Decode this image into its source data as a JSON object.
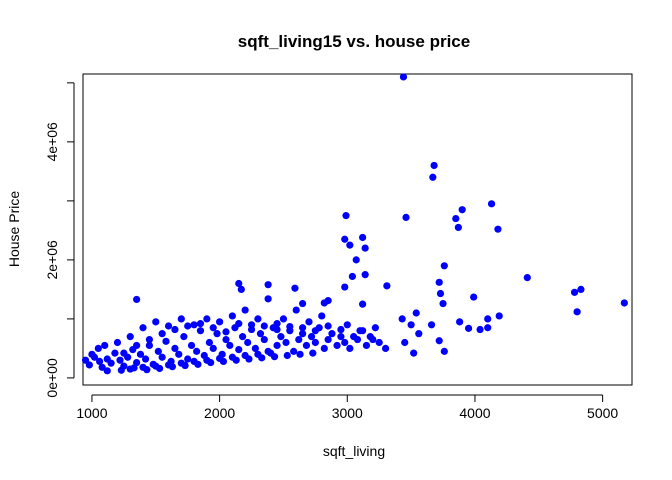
{
  "chart_data": {
    "type": "scatter",
    "title": "sqft_living15 vs. house price",
    "xlabel": "sqft_living",
    "ylabel": "House Price",
    "xlim": [
      930,
      5230
    ],
    "ylim": [
      -120000,
      5150000
    ],
    "x_ticks": [
      1000,
      2000,
      3000,
      4000,
      5000
    ],
    "x_tick_labels": [
      "1000",
      "2000",
      "3000",
      "4000",
      "5000"
    ],
    "y_ticks": [
      0,
      1000000,
      2000000,
      3000000,
      4000000,
      5000000
    ],
    "y_tick_labels": [
      "0e+00",
      "",
      "2e+06",
      "",
      "4e+06",
      ""
    ],
    "grid": false,
    "marker_color": "#0000FF",
    "points": [
      [
        3440,
        5100000
      ],
      [
        3680,
        3600000
      ],
      [
        3670,
        3400000
      ],
      [
        4130,
        2950000
      ],
      [
        3900,
        2850000
      ],
      [
        2990,
        2750000
      ],
      [
        3460,
        2720000
      ],
      [
        3850,
        2700000
      ],
      [
        3870,
        2550000
      ],
      [
        4180,
        2520000
      ],
      [
        3120,
        2380000
      ],
      [
        2980,
        2350000
      ],
      [
        3020,
        2250000
      ],
      [
        3140,
        2200000
      ],
      [
        3070,
        2000000
      ],
      [
        3760,
        1900000
      ],
      [
        3140,
        1750000
      ],
      [
        3040,
        1720000
      ],
      [
        4410,
        1700000
      ],
      [
        2150,
        1600000
      ],
      [
        2380,
        1580000
      ],
      [
        3720,
        1620000
      ],
      [
        2980,
        1540000
      ],
      [
        3310,
        1560000
      ],
      [
        4830,
        1500000
      ],
      [
        2170,
        1500000
      ],
      [
        2590,
        1520000
      ],
      [
        4780,
        1450000
      ],
      [
        3730,
        1430000
      ],
      [
        3990,
        1370000
      ],
      [
        5170,
        1270000
      ],
      [
        2380,
        1340000
      ],
      [
        1350,
        1330000
      ],
      [
        2850,
        1310000
      ],
      [
        2820,
        1270000
      ],
      [
        2650,
        1260000
      ],
      [
        3120,
        1250000
      ],
      [
        3750,
        1260000
      ],
      [
        4800,
        1120000
      ],
      [
        3540,
        1100000
      ],
      [
        3430,
        1000000
      ],
      [
        3500,
        900000
      ],
      [
        3880,
        950000
      ],
      [
        4100,
        1000000
      ],
      [
        4190,
        1050000
      ],
      [
        3660,
        900000
      ],
      [
        3950,
        840000
      ],
      [
        4040,
        820000
      ],
      [
        4100,
        850000
      ],
      [
        3560,
        750000
      ],
      [
        3720,
        630000
      ],
      [
        3760,
        450000
      ],
      [
        3520,
        420000
      ],
      [
        3450,
        600000
      ],
      [
        3300,
        500000
      ],
      [
        3200,
        650000
      ],
      [
        3100,
        800000
      ],
      [
        3000,
        900000
      ],
      [
        2800,
        1050000
      ],
      [
        2700,
        950000
      ],
      [
        2600,
        1150000
      ],
      [
        2500,
        1000000
      ],
      [
        2450,
        820000
      ],
      [
        2300,
        1000000
      ],
      [
        2200,
        1150000
      ],
      [
        2100,
        1050000
      ],
      [
        2000,
        950000
      ],
      [
        1900,
        1000000
      ],
      [
        1800,
        900000
      ],
      [
        1700,
        1000000
      ],
      [
        1600,
        880000
      ],
      [
        1500,
        950000
      ],
      [
        1400,
        850000
      ],
      [
        1300,
        700000
      ],
      [
        1200,
        600000
      ],
      [
        1100,
        550000
      ],
      [
        1050,
        500000
      ],
      [
        1000,
        400000
      ],
      [
        950,
        300000
      ],
      [
        980,
        220000
      ],
      [
        1020,
        350000
      ],
      [
        1060,
        280000
      ],
      [
        1080,
        180000
      ],
      [
        1120,
        320000
      ],
      [
        1150,
        250000
      ],
      [
        1180,
        420000
      ],
      [
        1220,
        300000
      ],
      [
        1250,
        200000
      ],
      [
        1280,
        350000
      ],
      [
        1320,
        480000
      ],
      [
        1350,
        260000
      ],
      [
        1380,
        400000
      ],
      [
        1420,
        320000
      ],
      [
        1450,
        550000
      ],
      [
        1480,
        230000
      ],
      [
        1520,
        450000
      ],
      [
        1550,
        350000
      ],
      [
        1580,
        620000
      ],
      [
        1620,
        280000
      ],
      [
        1650,
        500000
      ],
      [
        1680,
        400000
      ],
      [
        1720,
        700000
      ],
      [
        1750,
        320000
      ],
      [
        1780,
        550000
      ],
      [
        1820,
        450000
      ],
      [
        1850,
        800000
      ],
      [
        1880,
        380000
      ],
      [
        1920,
        600000
      ],
      [
        1950,
        500000
      ],
      [
        1980,
        750000
      ],
      [
        2020,
        400000
      ],
      [
        2050,
        650000
      ],
      [
        2080,
        550000
      ],
      [
        2120,
        850000
      ],
      [
        2150,
        480000
      ],
      [
        2180,
        700000
      ],
      [
        2220,
        600000
      ],
      [
        2250,
        900000
      ],
      [
        2280,
        500000
      ],
      [
        2320,
        750000
      ],
      [
        2350,
        650000
      ],
      [
        2380,
        450000
      ],
      [
        2420,
        850000
      ],
      [
        2450,
        550000
      ],
      [
        2480,
        700000
      ],
      [
        2520,
        600000
      ],
      [
        2550,
        800000
      ],
      [
        2580,
        450000
      ],
      [
        2620,
        650000
      ],
      [
        2650,
        750000
      ],
      [
        2680,
        550000
      ],
      [
        2720,
        700000
      ],
      [
        2750,
        600000
      ],
      [
        2780,
        850000
      ],
      [
        2820,
        500000
      ],
      [
        2850,
        650000
      ],
      [
        2880,
        750000
      ],
      [
        2920,
        550000
      ],
      [
        2950,
        700000
      ],
      [
        2980,
        600000
      ],
      [
        3020,
        500000
      ],
      [
        3050,
        700000
      ],
      [
        3080,
        650000
      ],
      [
        3120,
        800000
      ],
      [
        3150,
        550000
      ],
      [
        3180,
        700000
      ],
      [
        3220,
        850000
      ],
      [
        3250,
        600000
      ],
      [
        1300,
        150000
      ],
      [
        1400,
        180000
      ],
      [
        1500,
        200000
      ],
      [
        1600,
        220000
      ],
      [
        1700,
        250000
      ],
      [
        1800,
        280000
      ],
      [
        1900,
        300000
      ],
      [
        2000,
        330000
      ],
      [
        2100,
        350000
      ],
      [
        2200,
        380000
      ],
      [
        2300,
        400000
      ],
      [
        2400,
        420000
      ],
      [
        1250,
        420000
      ],
      [
        1350,
        550000
      ],
      [
        1450,
        650000
      ],
      [
        1550,
        750000
      ],
      [
        1650,
        820000
      ],
      [
        1750,
        880000
      ],
      [
        1850,
        920000
      ],
      [
        1950,
        850000
      ],
      [
        2050,
        780000
      ],
      [
        2150,
        920000
      ],
      [
        2250,
        820000
      ],
      [
        2350,
        880000
      ],
      [
        2450,
        920000
      ],
      [
        2550,
        870000
      ],
      [
        2650,
        850000
      ],
      [
        2750,
        800000
      ],
      [
        2850,
        880000
      ],
      [
        2950,
        820000
      ],
      [
        1120,
        120000
      ],
      [
        1230,
        130000
      ],
      [
        1330,
        170000
      ],
      [
        1430,
        140000
      ],
      [
        1530,
        160000
      ],
      [
        1630,
        190000
      ],
      [
        1730,
        210000
      ],
      [
        1830,
        230000
      ],
      [
        1930,
        260000
      ],
      [
        2030,
        280000
      ],
      [
        2130,
        300000
      ],
      [
        2230,
        320000
      ],
      [
        2330,
        340000
      ],
      [
        2430,
        360000
      ],
      [
        2530,
        380000
      ],
      [
        2630,
        400000
      ],
      [
        2730,
        420000
      ]
    ]
  }
}
